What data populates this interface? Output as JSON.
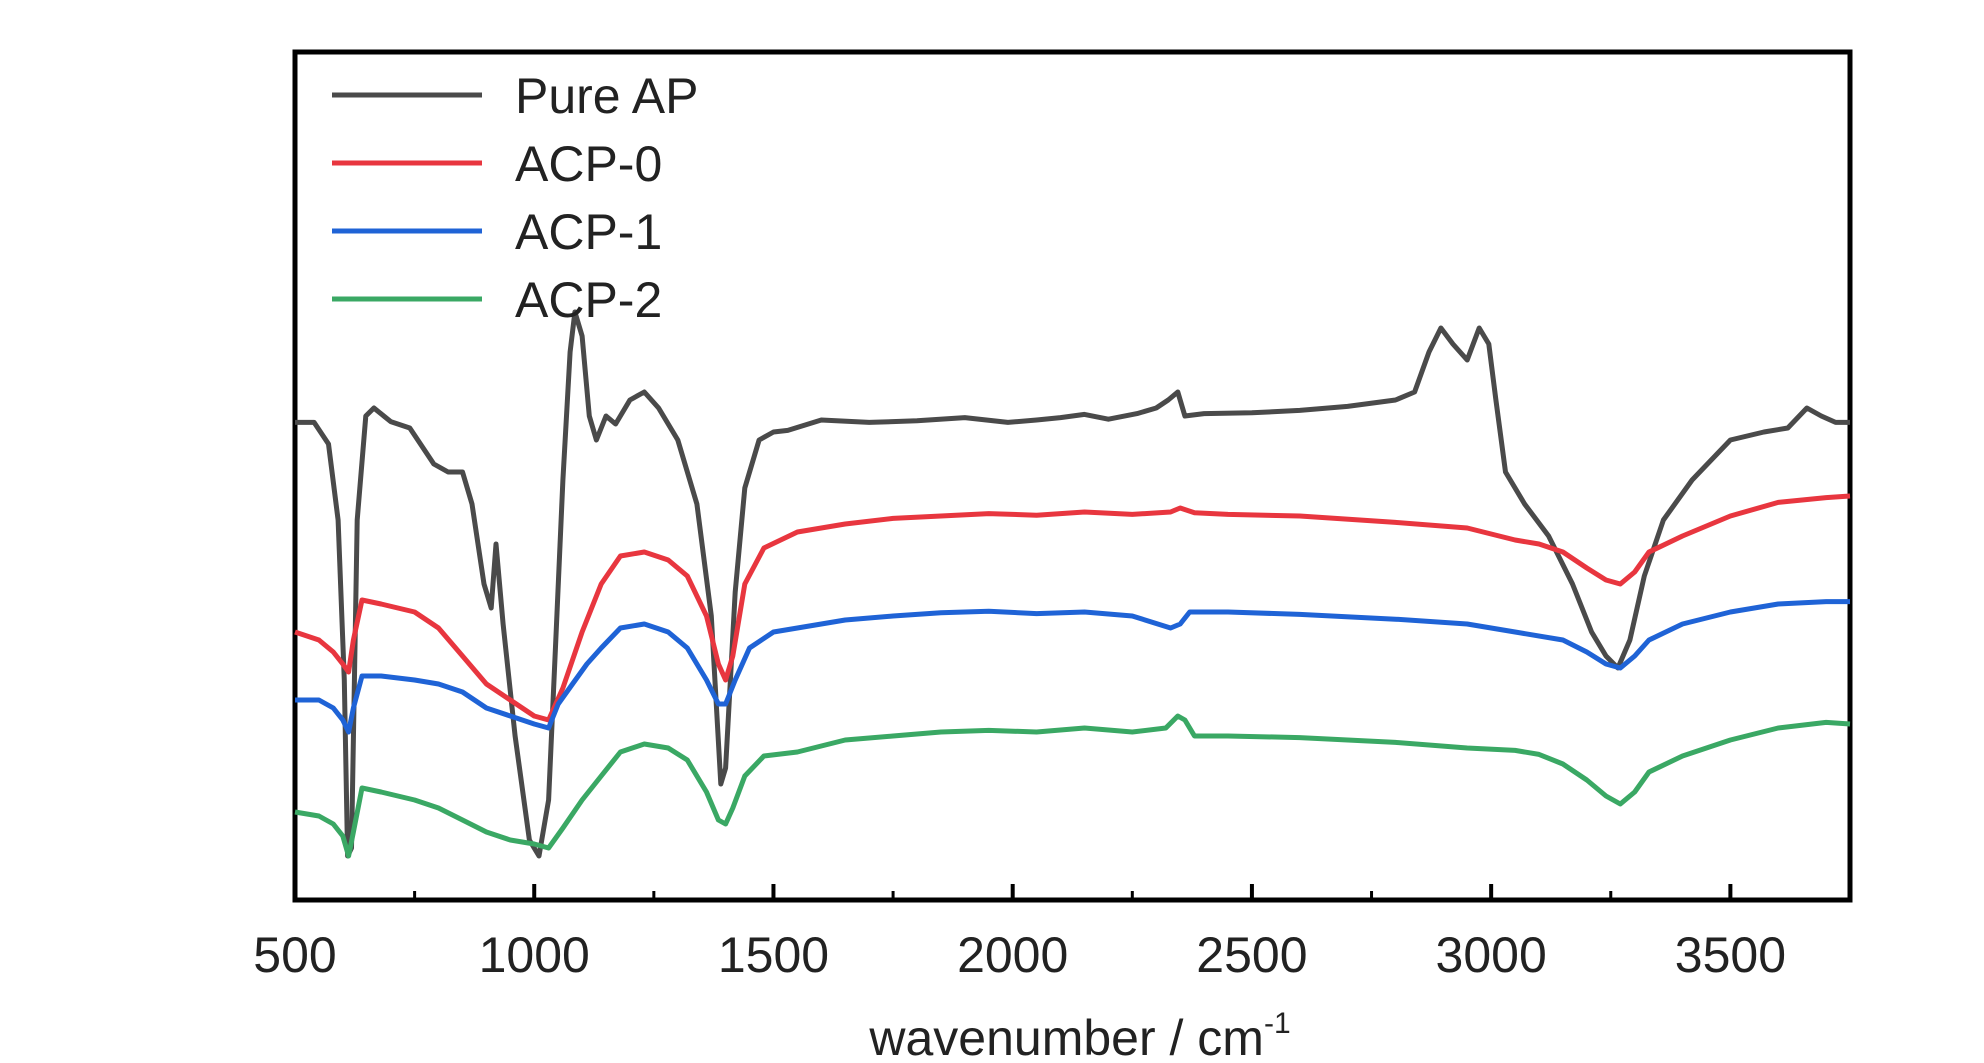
{
  "chart_data": {
    "type": "line",
    "title": "",
    "xlabel": "wavenumber / cm",
    "xlabel_superscript": "-1",
    "ylabel": "",
    "xlim": [
      500,
      3750
    ],
    "ylim": [
      0,
      1
    ],
    "x_ticks": [
      500,
      1000,
      1500,
      2000,
      2500,
      3000,
      3500
    ],
    "x_tick_labels": [
      "500",
      "1000",
      "1500",
      "2000",
      "2500",
      "3000",
      "3500"
    ],
    "x_minor_ticks": [
      750,
      1250,
      1750,
      2250,
      2750,
      3250
    ],
    "grid": false,
    "legend_position": "top-left",
    "series": [
      {
        "name": "Pure AP",
        "color": "#4a4a4a",
        "points": [
          [
            500,
            0.572
          ],
          [
            540,
            0.572
          ],
          [
            570,
            0.545
          ],
          [
            590,
            0.45
          ],
          [
            603,
            0.25
          ],
          [
            610,
            0.03
          ],
          [
            618,
            0.04
          ],
          [
            630,
            0.45
          ],
          [
            648,
            0.58
          ],
          [
            665,
            0.59
          ],
          [
            700,
            0.573
          ],
          [
            740,
            0.565
          ],
          [
            790,
            0.52
          ],
          [
            820,
            0.51
          ],
          [
            850,
            0.51
          ],
          [
            870,
            0.47
          ],
          [
            895,
            0.37
          ],
          [
            910,
            0.34
          ],
          [
            920,
            0.42
          ],
          [
            935,
            0.32
          ],
          [
            960,
            0.18
          ],
          [
            990,
            0.05
          ],
          [
            1010,
            0.03
          ],
          [
            1030,
            0.1
          ],
          [
            1045,
            0.3
          ],
          [
            1060,
            0.5
          ],
          [
            1075,
            0.66
          ],
          [
            1085,
            0.71
          ],
          [
            1100,
            0.68
          ],
          [
            1115,
            0.58
          ],
          [
            1130,
            0.55
          ],
          [
            1150,
            0.58
          ],
          [
            1170,
            0.57
          ],
          [
            1200,
            0.6
          ],
          [
            1230,
            0.61
          ],
          [
            1260,
            0.59
          ],
          [
            1300,
            0.55
          ],
          [
            1340,
            0.47
          ],
          [
            1370,
            0.33
          ],
          [
            1390,
            0.12
          ],
          [
            1400,
            0.14
          ],
          [
            1420,
            0.36
          ],
          [
            1440,
            0.49
          ],
          [
            1470,
            0.55
          ],
          [
            1500,
            0.56
          ],
          [
            1530,
            0.562
          ],
          [
            1600,
            0.575
          ],
          [
            1700,
            0.572
          ],
          [
            1800,
            0.574
          ],
          [
            1900,
            0.578
          ],
          [
            1990,
            0.572
          ],
          [
            2050,
            0.575
          ],
          [
            2100,
            0.578
          ],
          [
            2150,
            0.582
          ],
          [
            2200,
            0.576
          ],
          [
            2260,
            0.583
          ],
          [
            2300,
            0.59
          ],
          [
            2325,
            0.6
          ],
          [
            2345,
            0.61
          ],
          [
            2360,
            0.58
          ],
          [
            2400,
            0.583
          ],
          [
            2500,
            0.584
          ],
          [
            2600,
            0.587
          ],
          [
            2700,
            0.592
          ],
          [
            2800,
            0.6
          ],
          [
            2840,
            0.61
          ],
          [
            2870,
            0.66
          ],
          [
            2895,
            0.69
          ],
          [
            2920,
            0.67
          ],
          [
            2950,
            0.65
          ],
          [
            2975,
            0.69
          ],
          [
            2995,
            0.67
          ],
          [
            3010,
            0.6
          ],
          [
            3030,
            0.51
          ],
          [
            3070,
            0.47
          ],
          [
            3120,
            0.43
          ],
          [
            3170,
            0.37
          ],
          [
            3210,
            0.31
          ],
          [
            3240,
            0.28
          ],
          [
            3265,
            0.265
          ],
          [
            3290,
            0.3
          ],
          [
            3320,
            0.38
          ],
          [
            3360,
            0.45
          ],
          [
            3420,
            0.5
          ],
          [
            3500,
            0.55
          ],
          [
            3570,
            0.56
          ],
          [
            3620,
            0.565
          ],
          [
            3660,
            0.59
          ],
          [
            3690,
            0.58
          ],
          [
            3720,
            0.572
          ],
          [
            3750,
            0.572
          ]
        ]
      },
      {
        "name": "ACP-0",
        "color": "#e8363f",
        "points": [
          [
            500,
            0.31
          ],
          [
            550,
            0.3
          ],
          [
            580,
            0.285
          ],
          [
            600,
            0.27
          ],
          [
            612,
            0.26
          ],
          [
            622,
            0.3
          ],
          [
            640,
            0.35
          ],
          [
            680,
            0.345
          ],
          [
            750,
            0.335
          ],
          [
            800,
            0.315
          ],
          [
            850,
            0.28
          ],
          [
            900,
            0.245
          ],
          [
            950,
            0.225
          ],
          [
            1000,
            0.205
          ],
          [
            1030,
            0.2
          ],
          [
            1060,
            0.24
          ],
          [
            1100,
            0.31
          ],
          [
            1140,
            0.37
          ],
          [
            1180,
            0.405
          ],
          [
            1230,
            0.41
          ],
          [
            1280,
            0.4
          ],
          [
            1320,
            0.38
          ],
          [
            1360,
            0.33
          ],
          [
            1385,
            0.27
          ],
          [
            1400,
            0.25
          ],
          [
            1415,
            0.28
          ],
          [
            1440,
            0.37
          ],
          [
            1480,
            0.415
          ],
          [
            1550,
            0.435
          ],
          [
            1650,
            0.445
          ],
          [
            1750,
            0.452
          ],
          [
            1850,
            0.455
          ],
          [
            1950,
            0.458
          ],
          [
            2050,
            0.456
          ],
          [
            2150,
            0.46
          ],
          [
            2250,
            0.457
          ],
          [
            2330,
            0.46
          ],
          [
            2350,
            0.465
          ],
          [
            2380,
            0.459
          ],
          [
            2450,
            0.457
          ],
          [
            2600,
            0.455
          ],
          [
            2800,
            0.447
          ],
          [
            2950,
            0.44
          ],
          [
            3050,
            0.425
          ],
          [
            3100,
            0.42
          ],
          [
            3150,
            0.41
          ],
          [
            3200,
            0.39
          ],
          [
            3240,
            0.375
          ],
          [
            3270,
            0.37
          ],
          [
            3300,
            0.385
          ],
          [
            3330,
            0.41
          ],
          [
            3400,
            0.43
          ],
          [
            3500,
            0.455
          ],
          [
            3600,
            0.472
          ],
          [
            3700,
            0.478
          ],
          [
            3750,
            0.48
          ]
        ]
      },
      {
        "name": "ACP-1",
        "color": "#1f63d6",
        "points": [
          [
            500,
            0.225
          ],
          [
            550,
            0.225
          ],
          [
            580,
            0.215
          ],
          [
            600,
            0.2
          ],
          [
            612,
            0.185
          ],
          [
            622,
            0.215
          ],
          [
            640,
            0.255
          ],
          [
            680,
            0.255
          ],
          [
            750,
            0.25
          ],
          [
            800,
            0.245
          ],
          [
            850,
            0.235
          ],
          [
            900,
            0.215
          ],
          [
            950,
            0.205
          ],
          [
            1000,
            0.195
          ],
          [
            1030,
            0.19
          ],
          [
            1050,
            0.22
          ],
          [
            1080,
            0.245
          ],
          [
            1110,
            0.27
          ],
          [
            1140,
            0.29
          ],
          [
            1180,
            0.315
          ],
          [
            1230,
            0.32
          ],
          [
            1280,
            0.31
          ],
          [
            1320,
            0.29
          ],
          [
            1360,
            0.25
          ],
          [
            1385,
            0.22
          ],
          [
            1400,
            0.22
          ],
          [
            1420,
            0.25
          ],
          [
            1450,
            0.29
          ],
          [
            1500,
            0.31
          ],
          [
            1550,
            0.315
          ],
          [
            1650,
            0.325
          ],
          [
            1750,
            0.33
          ],
          [
            1850,
            0.334
          ],
          [
            1950,
            0.336
          ],
          [
            2050,
            0.333
          ],
          [
            2150,
            0.335
          ],
          [
            2250,
            0.33
          ],
          [
            2330,
            0.315
          ],
          [
            2350,
            0.32
          ],
          [
            2370,
            0.335
          ],
          [
            2450,
            0.335
          ],
          [
            2600,
            0.332
          ],
          [
            2800,
            0.326
          ],
          [
            2950,
            0.32
          ],
          [
            3050,
            0.31
          ],
          [
            3150,
            0.3
          ],
          [
            3200,
            0.285
          ],
          [
            3240,
            0.27
          ],
          [
            3270,
            0.265
          ],
          [
            3300,
            0.28
          ],
          [
            3330,
            0.3
          ],
          [
            3400,
            0.32
          ],
          [
            3500,
            0.335
          ],
          [
            3600,
            0.345
          ],
          [
            3700,
            0.348
          ],
          [
            3750,
            0.348
          ]
        ]
      },
      {
        "name": "ACP-2",
        "color": "#3aa864",
        "points": [
          [
            500,
            0.085
          ],
          [
            550,
            0.08
          ],
          [
            580,
            0.07
          ],
          [
            600,
            0.055
          ],
          [
            612,
            0.03
          ],
          [
            622,
            0.06
          ],
          [
            640,
            0.115
          ],
          [
            680,
            0.11
          ],
          [
            750,
            0.1
          ],
          [
            800,
            0.09
          ],
          [
            850,
            0.075
          ],
          [
            900,
            0.06
          ],
          [
            950,
            0.05
          ],
          [
            1000,
            0.045
          ],
          [
            1030,
            0.04
          ],
          [
            1060,
            0.065
          ],
          [
            1100,
            0.1
          ],
          [
            1140,
            0.13
          ],
          [
            1180,
            0.16
          ],
          [
            1230,
            0.17
          ],
          [
            1280,
            0.165
          ],
          [
            1320,
            0.15
          ],
          [
            1360,
            0.11
          ],
          [
            1385,
            0.075
          ],
          [
            1400,
            0.07
          ],
          [
            1415,
            0.09
          ],
          [
            1440,
            0.13
          ],
          [
            1480,
            0.155
          ],
          [
            1550,
            0.16
          ],
          [
            1650,
            0.175
          ],
          [
            1750,
            0.18
          ],
          [
            1850,
            0.185
          ],
          [
            1950,
            0.187
          ],
          [
            2050,
            0.185
          ],
          [
            2150,
            0.19
          ],
          [
            2250,
            0.185
          ],
          [
            2320,
            0.19
          ],
          [
            2345,
            0.205
          ],
          [
            2360,
            0.2
          ],
          [
            2380,
            0.18
          ],
          [
            2450,
            0.18
          ],
          [
            2600,
            0.178
          ],
          [
            2800,
            0.172
          ],
          [
            2950,
            0.165
          ],
          [
            3050,
            0.162
          ],
          [
            3100,
            0.157
          ],
          [
            3150,
            0.145
          ],
          [
            3200,
            0.125
          ],
          [
            3240,
            0.105
          ],
          [
            3270,
            0.095
          ],
          [
            3300,
            0.11
          ],
          [
            3330,
            0.135
          ],
          [
            3400,
            0.155
          ],
          [
            3500,
            0.175
          ],
          [
            3600,
            0.19
          ],
          [
            3700,
            0.197
          ],
          [
            3750,
            0.195
          ]
        ]
      }
    ]
  }
}
